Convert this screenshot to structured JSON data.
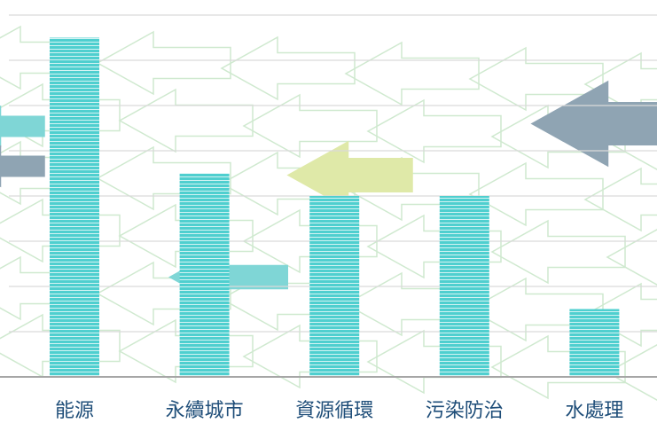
{
  "chart_data": {
    "type": "bar",
    "categories": [
      "能源",
      "永續城市",
      "資源循環",
      "污染防治",
      "水處理"
    ],
    "values": [
      15,
      9,
      8,
      8,
      3
    ],
    "ylim": [
      0,
      16
    ],
    "grid": true,
    "title": "",
    "xlabel": "",
    "ylabel": ""
  },
  "colors": {
    "bar": "#4fcfcf",
    "bar_stripe": "#ffffff",
    "grid": "#d9d9d9",
    "baseline": "#a6a6a6",
    "label": "#1f4e79",
    "decor_outline": "#cfe9cf",
    "decor_teal": "#7fd6d6",
    "decor_gray": "#8fa4b3",
    "decor_lime": "#dfe9a8"
  }
}
